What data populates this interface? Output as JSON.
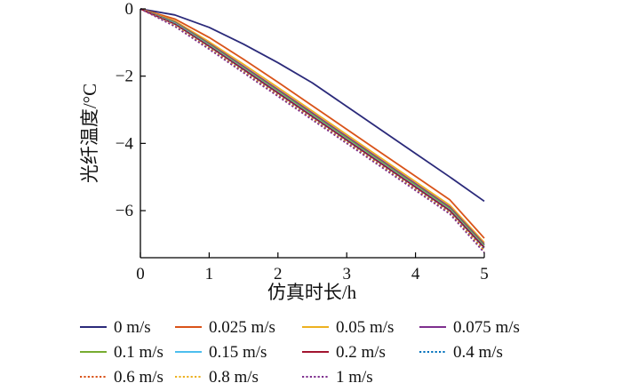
{
  "chart_data": {
    "type": "line",
    "xlabel": "仿真时长/h",
    "ylabel": "光纤温度/°C",
    "xlim": [
      0,
      5
    ],
    "ylim": [
      -7.4,
      0
    ],
    "xticks": [
      "0",
      "1",
      "2",
      "3",
      "4",
      "5"
    ],
    "yticks": [
      "0",
      "−2",
      "−4",
      "−6"
    ],
    "grid": false,
    "legend_position": "bottom",
    "x": [
      0,
      0.5,
      1,
      1.5,
      2,
      2.5,
      3,
      3.5,
      4,
      4.5,
      5
    ],
    "series": [
      {
        "name": "0 m/s",
        "color": "#2b2a7a",
        "dash": "solid",
        "values": [
          0,
          -0.18,
          -0.55,
          -1.05,
          -1.6,
          -2.2,
          -2.9,
          -3.6,
          -4.3,
          -5.0,
          -5.72
        ]
      },
      {
        "name": "0.025 m/s",
        "color": "#d95319",
        "dash": "solid",
        "values": [
          0,
          -0.3,
          -0.85,
          -1.5,
          -2.18,
          -2.88,
          -3.58,
          -4.28,
          -4.98,
          -5.68,
          -6.82
        ]
      },
      {
        "name": "0.05 m/s",
        "color": "#edb120",
        "dash": "solid",
        "values": [
          0,
          -0.36,
          -0.98,
          -1.65,
          -2.34,
          -3.04,
          -3.74,
          -4.44,
          -5.14,
          -5.84,
          -6.95
        ]
      },
      {
        "name": "0.075 m/s",
        "color": "#7e2f8e",
        "dash": "solid",
        "values": [
          0,
          -0.39,
          -1.03,
          -1.71,
          -2.4,
          -3.1,
          -3.8,
          -4.5,
          -5.2,
          -5.9,
          -7.0
        ]
      },
      {
        "name": "0.1 m/s",
        "color": "#77ac30",
        "dash": "solid",
        "values": [
          0,
          -0.41,
          -1.06,
          -1.75,
          -2.44,
          -3.14,
          -3.84,
          -4.54,
          -5.24,
          -5.94,
          -7.04
        ]
      },
      {
        "name": "0.15 m/s",
        "color": "#4dbeee",
        "dash": "solid",
        "values": [
          0,
          -0.43,
          -1.09,
          -1.78,
          -2.48,
          -3.18,
          -3.88,
          -4.58,
          -5.28,
          -5.98,
          -7.08
        ]
      },
      {
        "name": "0.2 m/s",
        "color": "#a2142f",
        "dash": "solid",
        "values": [
          0,
          -0.45,
          -1.11,
          -1.8,
          -2.5,
          -3.2,
          -3.9,
          -4.6,
          -5.3,
          -6.0,
          -7.1
        ]
      },
      {
        "name": "0.4 m/s",
        "color": "#0072bd",
        "dash": "dotted",
        "values": [
          0,
          -0.47,
          -1.14,
          -1.84,
          -2.54,
          -3.24,
          -3.94,
          -4.64,
          -5.34,
          -6.04,
          -7.15
        ]
      },
      {
        "name": "0.6 m/s",
        "color": "#d95319",
        "dash": "dotted",
        "values": [
          0,
          -0.49,
          -1.16,
          -1.86,
          -2.56,
          -3.26,
          -3.96,
          -4.66,
          -5.36,
          -6.06,
          -7.18
        ]
      },
      {
        "name": "0.8 m/s",
        "color": "#edb120",
        "dash": "dotted",
        "values": [
          0,
          -0.5,
          -1.18,
          -1.88,
          -2.58,
          -3.28,
          -3.98,
          -4.68,
          -5.38,
          -6.08,
          -7.21
        ]
      },
      {
        "name": "1 m/s",
        "color": "#7e2f8e",
        "dash": "dotted",
        "values": [
          0,
          -0.52,
          -1.2,
          -1.9,
          -2.6,
          -3.3,
          -4.0,
          -4.7,
          -5.4,
          -6.1,
          -7.25
        ]
      }
    ]
  }
}
